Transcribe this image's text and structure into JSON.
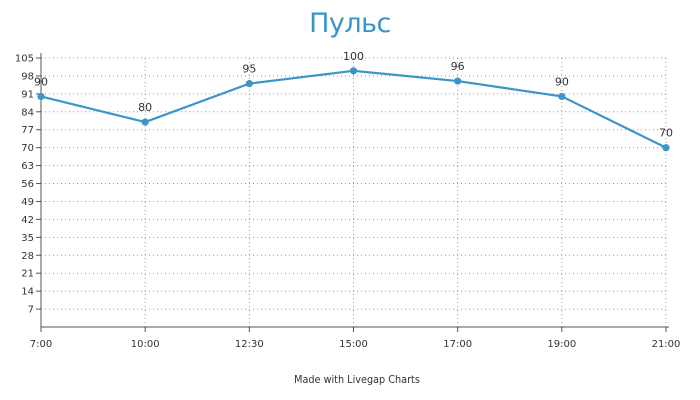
{
  "title": "Пульс",
  "footer": "Made with Livegap Charts",
  "colors": {
    "title": "#3a96c8",
    "series": "#3a96c8",
    "grid": "#9a9a9a",
    "axis": "#555555",
    "text": "#333333"
  },
  "chart_data": {
    "type": "line",
    "title": "Пульс",
    "categories": [
      "7:00",
      "10:00",
      "12:30",
      "15:00",
      "17:00",
      "19:00",
      "21:00"
    ],
    "series": [
      {
        "values": [
          90,
          80,
          95,
          100,
          96,
          90,
          70
        ]
      }
    ],
    "data_labels": [
      "90",
      "80",
      "95",
      "100",
      "96",
      "90",
      "70"
    ],
    "ylim": [
      0,
      105
    ],
    "yticks": [
      7,
      14,
      21,
      28,
      35,
      42,
      49,
      56,
      63,
      70,
      77,
      84,
      91,
      98,
      105
    ],
    "grid": true,
    "grid_style": "dotted",
    "legend": "none"
  }
}
